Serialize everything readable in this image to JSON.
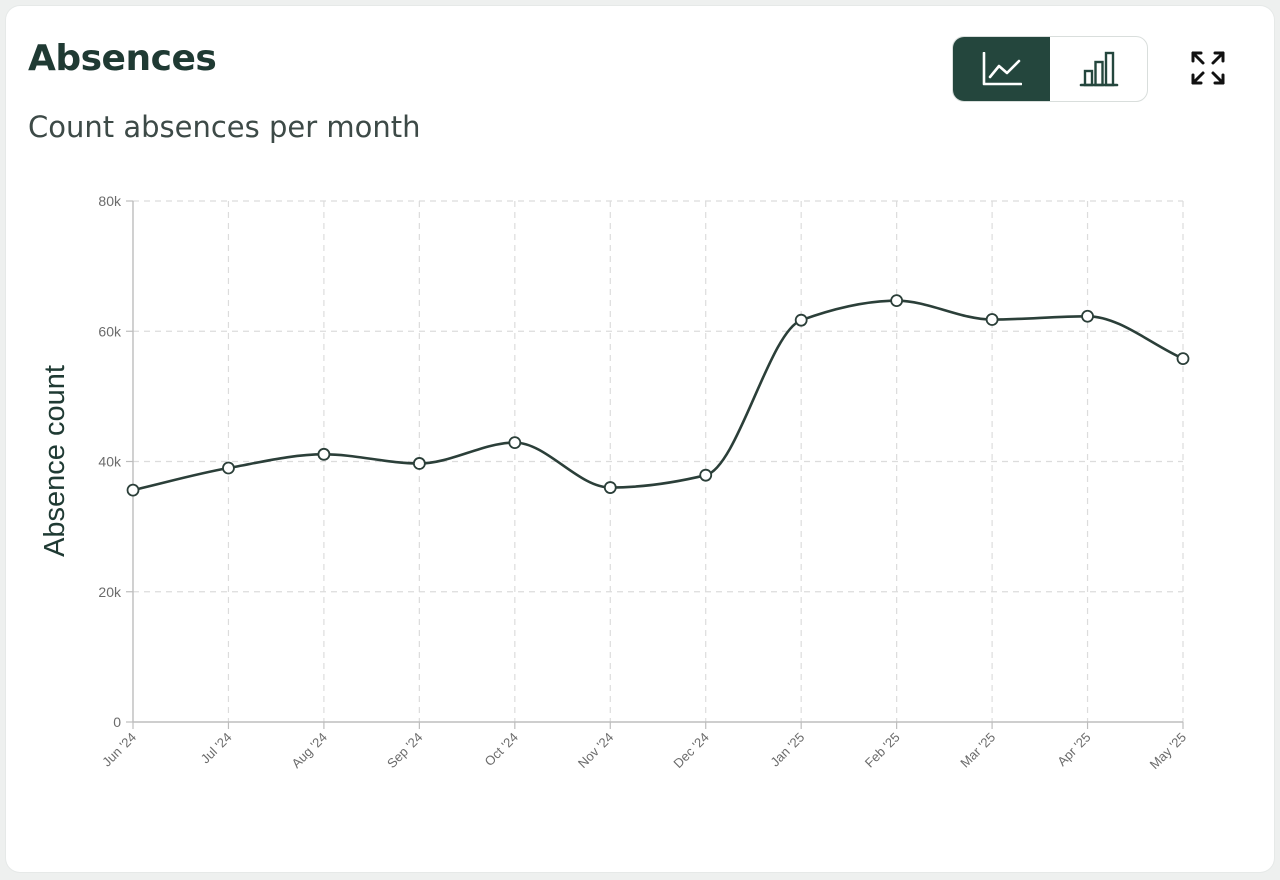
{
  "card": {
    "title": "Absences",
    "subtitle": "Count absences per month"
  },
  "toolbar": {
    "active_view": "line",
    "views": [
      "line",
      "bar"
    ],
    "icons": {
      "line": "line-chart-icon",
      "bar": "bar-chart-icon",
      "expand": "expand-icon"
    }
  },
  "colors": {
    "accent": "#24463d",
    "line": "#2b3f39",
    "grid": "#dcdcdc",
    "axis": "#bdbdbd",
    "tick_text": "#6b6b6b"
  },
  "chart_data": {
    "type": "line",
    "title": "",
    "xlabel": "",
    "ylabel": "Absence count",
    "categories": [
      "Jun '24",
      "Jul '24",
      "Aug '24",
      "Sep '24",
      "Oct '24",
      "Nov '24",
      "Dec '24",
      "Jan '25",
      "Feb '25",
      "Mar '25",
      "Apr '25",
      "May '25"
    ],
    "series": [
      {
        "values": [
          35600,
          39000,
          41100,
          39700,
          42900,
          36000,
          37900,
          61700,
          64700,
          61800,
          62300,
          55800
        ]
      }
    ],
    "ylim": [
      0,
      80000
    ],
    "yticks": [
      0,
      20000,
      40000,
      60000,
      80000
    ],
    "ytick_labels": [
      "0",
      "20k",
      "40k",
      "60k",
      "80k"
    ],
    "grid": true,
    "grid_style": "dashed",
    "smooth": true,
    "markers": "hollow-circle",
    "legend": "none"
  }
}
